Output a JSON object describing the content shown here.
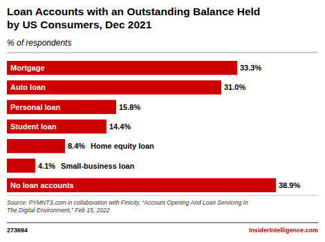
{
  "chart_data": {
    "type": "bar",
    "orientation": "horizontal",
    "title": "Loan Accounts with an Outstanding Balance Held\nby US Consumers, Dec 2021",
    "subtitle": "% of respondents",
    "categories": [
      "Mortgage",
      "Auto loan",
      "Personal loan",
      "Student loan",
      "Home equity loan",
      "Small-business loan",
      "No loan accounts"
    ],
    "values": [
      33.3,
      31.0,
      15.8,
      14.4,
      8.4,
      4.1,
      38.9
    ],
    "value_labels": [
      "33.3%",
      "31.0%",
      "15.8%",
      "14.4%",
      "8.4%",
      "4.1%",
      "38.9%"
    ],
    "color": "#CC0000",
    "xlim": [
      0,
      45
    ],
    "data_labels": true,
    "tick_labels": false,
    "grid": false,
    "annotations": [
      "Source: PYMNTS.com in collaboration with Finicity, “Account Opening And Loan Servicing In\nThe Digital Environment,” Feb 15, 2022",
      "273694",
      "InsiderIntelligence.com"
    ]
  }
}
